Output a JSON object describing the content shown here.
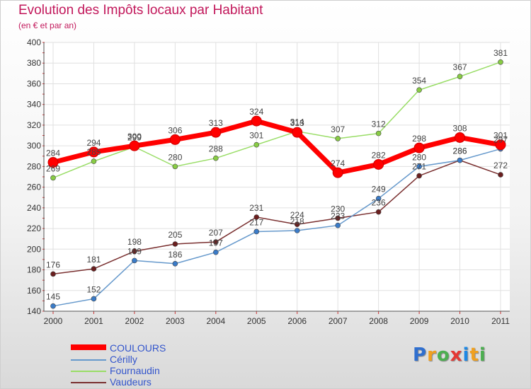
{
  "title": "Evolution des Impôts locaux par Habitant",
  "subtitle": "(en € et par an)",
  "logo": {
    "letters": [
      {
        "ch": "P",
        "color": "#2f6fcf"
      },
      {
        "ch": "r",
        "color": "#f0a020"
      },
      {
        "ch": "o",
        "color": "#4caf50"
      },
      {
        "ch": "x",
        "color": "#e53935"
      },
      {
        "ch": "i",
        "color": "#1e88e5"
      },
      {
        "ch": "t",
        "color": "#f0a020"
      },
      {
        "ch": "i",
        "color": "#4caf50"
      }
    ]
  },
  "chart_data": {
    "type": "line",
    "x": [
      "2000",
      "2001",
      "2002",
      "2003",
      "2004",
      "2005",
      "2006",
      "2007",
      "2008",
      "2009",
      "2010",
      "2011"
    ],
    "ylim": [
      140,
      400
    ],
    "yticks": [
      140,
      160,
      180,
      200,
      220,
      240,
      260,
      280,
      300,
      320,
      340,
      360,
      380,
      400
    ],
    "grid": true,
    "legend": "bottom-left",
    "series": [
      {
        "name": "COULOURS",
        "color": "#ff0000",
        "width": 7,
        "marker": 7,
        "values": [
          284,
          294,
          300,
          306,
          313,
          324,
          313,
          274,
          282,
          298,
          308,
          301
        ]
      },
      {
        "name": "Cérilly",
        "color": "#6699cc",
        "width": 1.5,
        "marker": 3.5,
        "markerColor": "#3a7bc8",
        "values": [
          145,
          152,
          189,
          186,
          197,
          217,
          218,
          223,
          249,
          280,
          286,
          297
        ]
      },
      {
        "name": "Fournaudin",
        "color": "#99dd66",
        "width": 1.5,
        "marker": 3.5,
        "markerColor": "#88cc44",
        "values": [
          269,
          285,
          299,
          280,
          288,
          301,
          314,
          307,
          312,
          354,
          367,
          381
        ]
      },
      {
        "name": "Vaudeurs",
        "color": "#7a3030",
        "width": 1.5,
        "marker": 3.5,
        "markerColor": "#6a1e1e",
        "values": [
          176,
          181,
          198,
          205,
          207,
          231,
          224,
          230,
          236,
          271,
          286,
          272
        ]
      }
    ]
  }
}
